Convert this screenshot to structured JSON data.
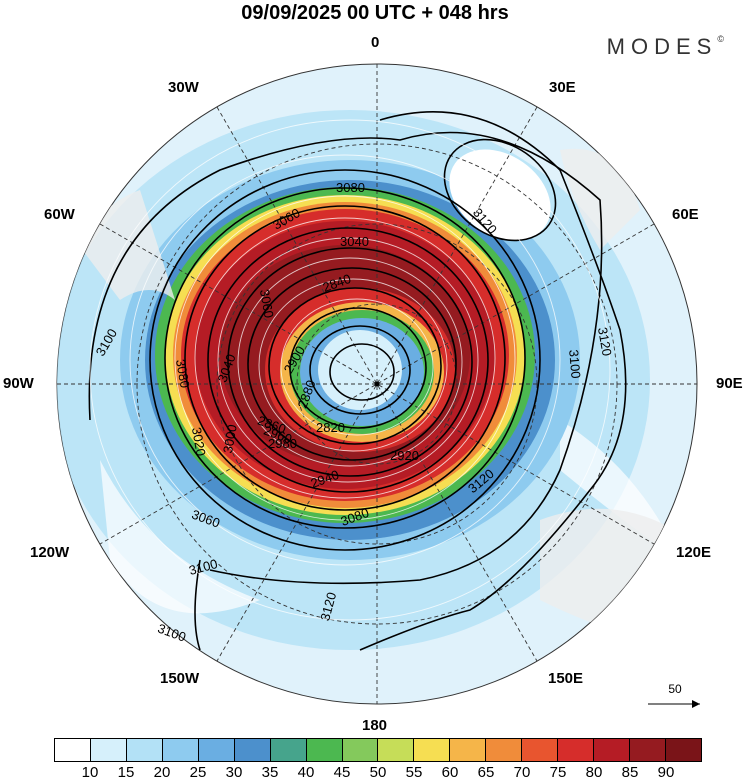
{
  "title": "09/09/2025  00 UTC  + 048 hrs",
  "brand": "MODES",
  "brand_mark": "©",
  "longitude_labels": {
    "n0": "0",
    "e30": "30E",
    "e60": "60E",
    "e90": "90E",
    "e120": "120E",
    "e150": "150E",
    "s180": "180",
    "w150": "150W",
    "w120": "120W",
    "w90": "90W",
    "w60": "60W",
    "w30": "30W"
  },
  "contour_labels": [
    "3080",
    "3060",
    "3040",
    "3120",
    "3100",
    "3120",
    "3100",
    "3080",
    "3060",
    "3040",
    "3020",
    "3000",
    "2980",
    "2960",
    "2940",
    "2920",
    "2900",
    "2880",
    "2860",
    "2840",
    "2820",
    "3080",
    "3060",
    "3120",
    "3100",
    "3120",
    "3100"
  ],
  "vector_reference": {
    "label": "50"
  },
  "colorbar": {
    "labels": [
      "10",
      "15",
      "20",
      "25",
      "30",
      "35",
      "40",
      "45",
      "50",
      "55",
      "60",
      "65",
      "70",
      "75",
      "80",
      "85",
      "90"
    ],
    "colors": [
      "#ffffff",
      "#d6f0fb",
      "#b3e1f6",
      "#8ecbef",
      "#6aaee2",
      "#4c90cc",
      "#46a48c",
      "#4cb850",
      "#84c95c",
      "#c6dd58",
      "#f6de52",
      "#f5b549",
      "#f08c3a",
      "#e8552f",
      "#d62d2b",
      "#b51c25",
      "#951b20",
      "#7a1418"
    ]
  }
}
